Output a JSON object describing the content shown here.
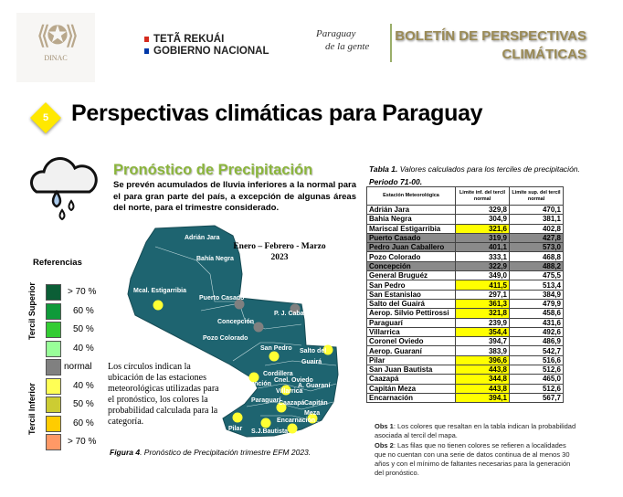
{
  "header": {
    "dinac_logo": "DINAC",
    "gov_line1": "TETÃ REKUÁI",
    "gov_line2": "GOBIERNO NACIONAL",
    "paraguay_logo_1": "Paraguay",
    "paraguay_logo_2": "de la gente",
    "bulletin_line1": "BOLETÍN DE PERSPECTIVAS",
    "bulletin_line2": "CLIMÁTICAS"
  },
  "section": {
    "number": "5",
    "title": "Perspectivas climáticas para Paraguay"
  },
  "forecast": {
    "title": "Pronóstico de Precipitación",
    "description": "Se prevén acumulados de lluvia inferiores a la normal para el para gran parte del país, a excepción de algunas áreas del norte, para el trimestre considerado.",
    "period_line1": "Enero – Febrero - Marzo",
    "period_line2": "2023",
    "circles_note": "Los círculos indican la ubicación de las estaciones meteorológicas utilizadas para el pronóstico, los colores la probabilidad calculada para la categoría.",
    "figure_caption_bold": "Figura 4",
    "figure_caption": ". Pronóstico de Precipitación trimestre EFM 2023."
  },
  "legend": {
    "title": "Referencias",
    "upper_label": "Tercil Superior",
    "lower_label": "Tercil Inferior",
    "items": [
      {
        "label": "> 70 %",
        "color": "#0b5e36"
      },
      {
        "label": "60 %",
        "color": "#0f9a3a"
      },
      {
        "label": "50 %",
        "color": "#33cc33"
      },
      {
        "label": "40 %",
        "color": "#99ff99"
      },
      {
        "label": "normal",
        "color": "#808080"
      },
      {
        "label": "40  %",
        "color": "#ffff55"
      },
      {
        "label": "50  %",
        "color": "#cccc33"
      },
      {
        "label": "60 %",
        "color": "#ffcc00"
      },
      {
        "label": "> 70 %",
        "color": "#ff9966"
      }
    ]
  },
  "map": {
    "fill": "#1e6470",
    "labels": [
      "Adrián Jara",
      "Bahía Negra",
      "Mcal. Estigarribia",
      "Puerto Casado",
      "P. J. Caballero",
      "Concepción",
      "Pozo Colorado",
      "San Pedro",
      "Salto del",
      "Guairá",
      "Cordillera",
      "Cnel. Oviedo",
      "A. Guaraní",
      "Asunción",
      "Villarrica",
      "Paraguarí",
      "Caazapá",
      "Capitán",
      "Meza",
      "Pilar",
      "S.J.Bautista",
      "Encarnación"
    ],
    "stations": [
      {
        "name": "Mcal. Estigarribia",
        "color": "#ffff33"
      },
      {
        "name": "Puerto Casado",
        "color": "#808080"
      },
      {
        "name": "P. J. Caballero",
        "color": "#808080"
      },
      {
        "name": "Concepción",
        "color": "#808080"
      },
      {
        "name": "San Pedro",
        "color": "#ffff33"
      },
      {
        "name": "Salto del Guairá",
        "color": "#ffff33"
      },
      {
        "name": "Asunción",
        "color": "#ffff33"
      },
      {
        "name": "Villarrica",
        "color": "#ffff33"
      },
      {
        "name": "Caazapá",
        "color": "#ffff33"
      },
      {
        "name": "Capitán Meza",
        "color": "#ffff33"
      },
      {
        "name": "Pilar",
        "color": "#ffff33"
      },
      {
        "name": "S.J.Bautista",
        "color": "#ffff33"
      },
      {
        "name": "Encarnación",
        "color": "#ffff33"
      }
    ]
  },
  "table": {
    "caption_bold": "Tabla 1.",
    "caption": " Valores calculados para los terciles de precipitación.",
    "period": "Periodo 71-00.",
    "headers": [
      "Estación Meteorológica",
      "Limite inf. del tercil normal",
      "Limite sup. del tercil normal"
    ],
    "rows": [
      {
        "station": "Adrián Jara",
        "low": "329,8",
        "high": "470,1",
        "hl": ""
      },
      {
        "station": "Bahía Negra",
        "low": "304,9",
        "high": "381,1",
        "hl": ""
      },
      {
        "station": "Mariscal Estigarribia",
        "low": "321,6",
        "high": "402,8",
        "hl": "yellow"
      },
      {
        "station": "Puerto Casado",
        "low": "319,9",
        "high": "427,8",
        "hl": "grey"
      },
      {
        "station": "Pedro Juan Caballero",
        "low": "401,1",
        "high": "573,0",
        "hl": "grey"
      },
      {
        "station": "Pozo Colorado",
        "low": "333,1",
        "high": "468,8",
        "hl": ""
      },
      {
        "station": "Concepción",
        "low": "322,9",
        "high": "488,2",
        "hl": "grey"
      },
      {
        "station": "General Bruguéz",
        "low": "349,0",
        "high": "475,5",
        "hl": ""
      },
      {
        "station": "San Pedro",
        "low": "411,5",
        "high": "513,4",
        "hl": "yellow"
      },
      {
        "station": "San Estanislao",
        "low": "297,1",
        "high": "384,9",
        "hl": ""
      },
      {
        "station": "Salto del Guairá",
        "low": "361,3",
        "high": "479,9",
        "hl": "yellow"
      },
      {
        "station": "Aerop. Silvio Pettirossi",
        "low": "321,8",
        "high": "458,6",
        "hl": "yellow"
      },
      {
        "station": "Paraguarí",
        "low": "239,9",
        "high": "431,6",
        "hl": ""
      },
      {
        "station": "Villarrica",
        "low": "354,4",
        "high": "492,6",
        "hl": "yellow"
      },
      {
        "station": "Coronel Oviedo",
        "low": "394,7",
        "high": "486,9",
        "hl": ""
      },
      {
        "station": "Aerop. Guaraní",
        "low": "383,9",
        "high": "542,7",
        "hl": ""
      },
      {
        "station": "Pilar",
        "low": "396,6",
        "high": "516,6",
        "hl": "yellow"
      },
      {
        "station": "San Juan Bautista",
        "low": "443,8",
        "high": "512,6",
        "hl": "yellow"
      },
      {
        "station": "Caazapá",
        "low": "344,8",
        "high": "465,0",
        "hl": "yellow"
      },
      {
        "station": "Capitán Meza",
        "low": "443,8",
        "high": "512,6",
        "hl": "yellow"
      },
      {
        "station": "Encarnación",
        "low": "394,1",
        "high": "567,7",
        "hl": "yellow"
      }
    ],
    "obs1_label": "Obs 1",
    "obs1": ": Los colores que resaltan en la tabla indican la probabilidad asociada al tercil del mapa.",
    "obs2_label": "Obs 2",
    "obs2": ": Las filas que no tienen colores se refieren a localidades que no cuentan con una serie de datos continua de al menos 30 años y con el mínimo de faltantes necesarias para la generación del pronóstico."
  }
}
